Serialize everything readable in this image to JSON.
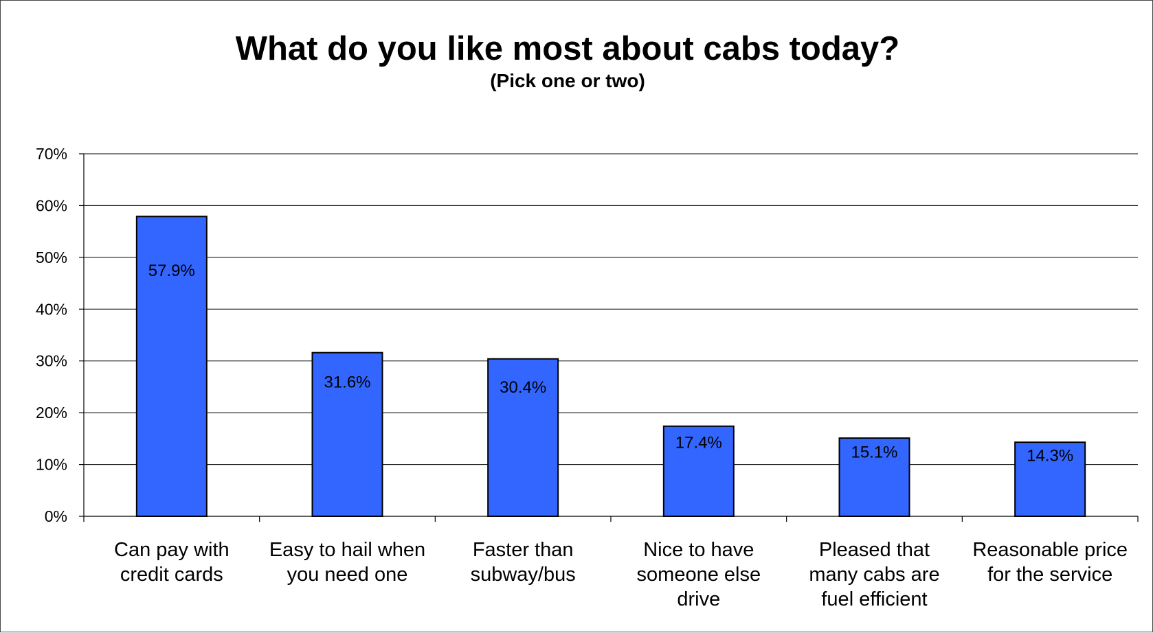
{
  "chart_data": {
    "type": "bar",
    "title": "What do you like most about cabs today?",
    "subtitle": "(Pick one or two)",
    "xlabel": "",
    "ylabel": "",
    "categories": [
      [
        "Can pay with",
        "credit cards"
      ],
      [
        "Easy to hail when",
        "you need one"
      ],
      [
        "Faster than",
        "subway/bus"
      ],
      [
        "Nice to have",
        "someone else",
        "drive"
      ],
      [
        "Pleased that",
        "many cabs are",
        "fuel efficient"
      ],
      [
        "Reasonable price",
        "for the service"
      ]
    ],
    "values": [
      57.9,
      31.6,
      30.4,
      17.4,
      15.1,
      14.3
    ],
    "data_labels": [
      "57.9%",
      "31.6%",
      "30.4%",
      "17.4%",
      "15.1%",
      "14.3%"
    ],
    "ylim": [
      0,
      70
    ],
    "yticks": [
      0,
      10,
      20,
      30,
      40,
      50,
      60,
      70
    ],
    "ytick_labels": [
      "0%",
      "10%",
      "20%",
      "30%",
      "40%",
      "50%",
      "60%",
      "70%"
    ],
    "grid": true,
    "legend": "none",
    "bar_color": "#3366FF"
  }
}
